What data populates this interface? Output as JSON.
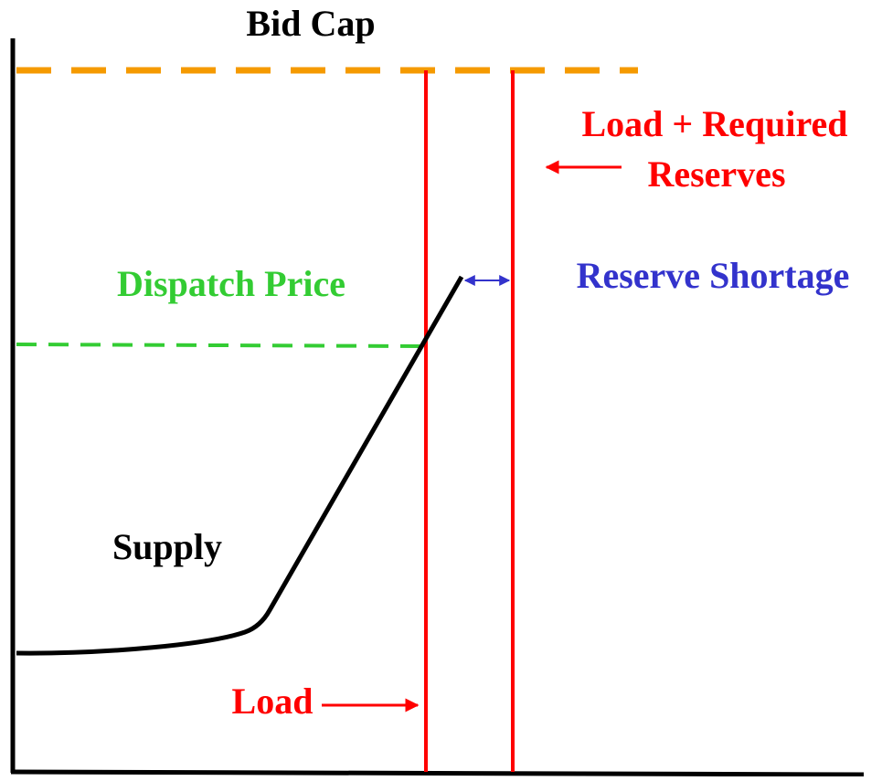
{
  "labels": {
    "bid_cap": "Bid Cap",
    "load_required_line1": "Load + Required",
    "load_required_line2": "Reserves",
    "dispatch_price": "Dispatch Price",
    "reserve_shortage": "Reserve Shortage",
    "supply": "Supply",
    "load": "Load"
  }
}
